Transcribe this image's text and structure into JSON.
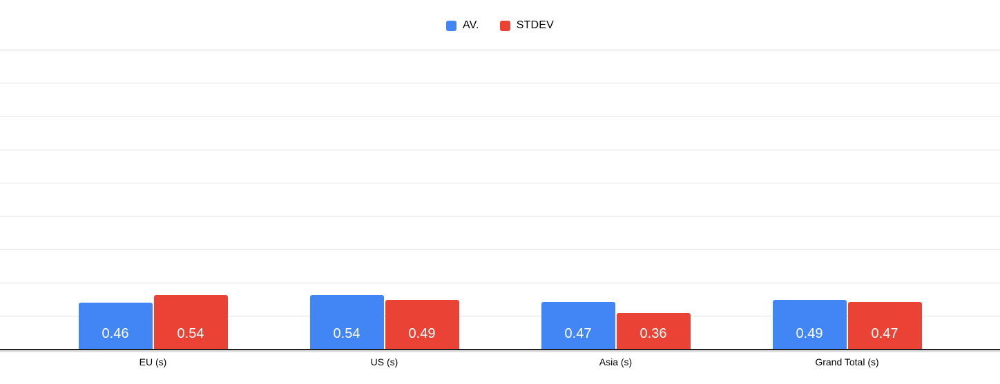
{
  "chart_data": {
    "type": "bar",
    "title": "",
    "categories": [
      "EU (s)",
      "US (s)",
      "Asia (s)",
      "Grand Total (s)"
    ],
    "series": [
      {
        "name": "AV.",
        "color": "#4285F4",
        "values": [
          0.46,
          0.54,
          0.47,
          0.49
        ]
      },
      {
        "name": "STDEV",
        "color": "#EA4335",
        "values": [
          0.54,
          0.49,
          0.36,
          0.47
        ]
      }
    ],
    "xlabel": "",
    "ylabel": "",
    "ylim": [
      0,
      3
    ],
    "gridline_intervals": 9,
    "grid": true,
    "y_axis_labels_visible": false,
    "legend_position": "top",
    "value_labels_visible": true,
    "value_label_decimals": 2
  },
  "colors": {
    "background": "#FFFFFF",
    "gridline": "#E2E2E2",
    "top_gridline": "#D2D2D2",
    "axis_line": "#1F1F1F",
    "legend_text": "#000000",
    "axis_label_text": "#000000",
    "value_label_text": "#FFFFFF"
  }
}
